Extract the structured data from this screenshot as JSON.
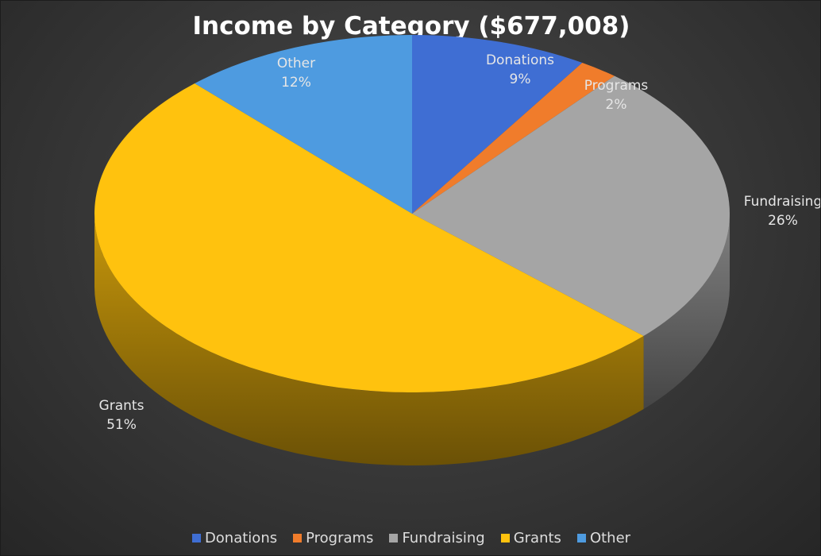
{
  "chart_data": {
    "type": "pie",
    "title": "Income by Category ($677,008)",
    "categories": [
      "Donations",
      "Programs",
      "Fundraising",
      "Grants",
      "Other"
    ],
    "values": [
      9,
      2,
      26,
      51,
      12
    ],
    "value_labels": [
      "9%",
      "2%",
      "26%",
      "51%",
      "12%"
    ],
    "colors": [
      "#3f6ed3",
      "#f07c2b",
      "#a5a5a5",
      "#ffc20e",
      "#4e9be0"
    ],
    "style": "3d",
    "legend": "bottom"
  }
}
